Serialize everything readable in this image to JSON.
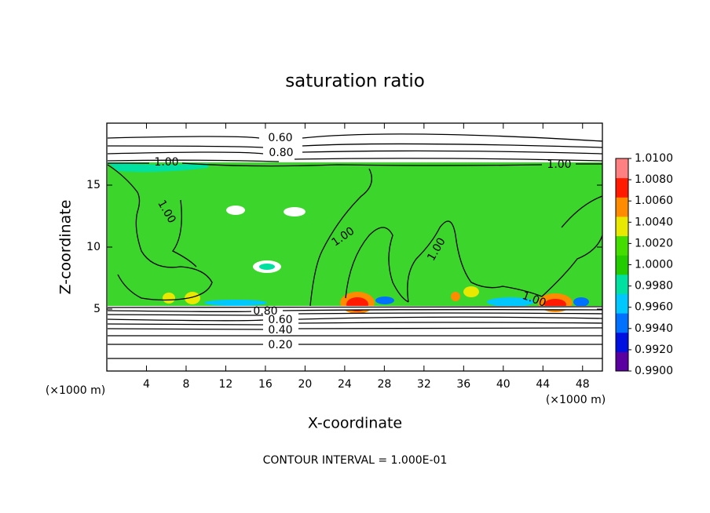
{
  "chart_data": {
    "type": "contour",
    "title": "saturation ratio",
    "x_label": "X-coordinate",
    "y_label": "Z-coordinate",
    "x_unit": "(×1000 m)",
    "y_unit": "(×1000 m)",
    "footnote": "CONTOUR INTERVAL = 1.000E-01",
    "xlim": [
      0,
      50
    ],
    "xticks": [
      4,
      8,
      12,
      16,
      20,
      24,
      28,
      32,
      36,
      40,
      44,
      48
    ],
    "ylim": [
      0,
      20
    ],
    "yticks": [
      5,
      10,
      15
    ],
    "clim": [
      0.99,
      1.01
    ],
    "colorbar_ticks": [
      {
        "value": 1.01,
        "label": "1.0100"
      },
      {
        "value": 1.008,
        "label": "1.0080"
      },
      {
        "value": 1.006,
        "label": "1.0060"
      },
      {
        "value": 1.004,
        "label": "1.0040"
      },
      {
        "value": 1.002,
        "label": "1.0020"
      },
      {
        "value": 1.0,
        "label": "1.0000"
      },
      {
        "value": 0.998,
        "label": "0.9980"
      },
      {
        "value": 0.996,
        "label": "0.9960"
      },
      {
        "value": 0.994,
        "label": "0.9940"
      },
      {
        "value": 0.992,
        "label": "0.9920"
      },
      {
        "value": 0.99,
        "label": "0.9900"
      }
    ],
    "colorbar_colors": [
      "#5a00a0",
      "#0010e0",
      "#0070ff",
      "#00c8ff",
      "#00e0a0",
      "#22cc00",
      "#44dd00",
      "#e8e800",
      "#ff8c00",
      "#ff1a00",
      "#ff8080"
    ],
    "contour_labels": [
      {
        "value": 0.6,
        "label": "0.60"
      },
      {
        "value": 0.8,
        "label": "0.80"
      },
      {
        "value": 1.0,
        "label": "1.00"
      },
      {
        "value": 1.0,
        "label": "1.00"
      },
      {
        "value": 1.0,
        "label": "1.00"
      },
      {
        "value": 1.0,
        "label": "1.00"
      },
      {
        "value": 1.0,
        "label": "1.00"
      },
      {
        "value": 1.0,
        "label": "1.00"
      },
      {
        "value": 0.8,
        "label": "0.80"
      },
      {
        "value": 0.6,
        "label": "0.60"
      },
      {
        "value": 0.4,
        "label": "0.40"
      },
      {
        "value": 0.2,
        "label": "0.20"
      }
    ]
  }
}
